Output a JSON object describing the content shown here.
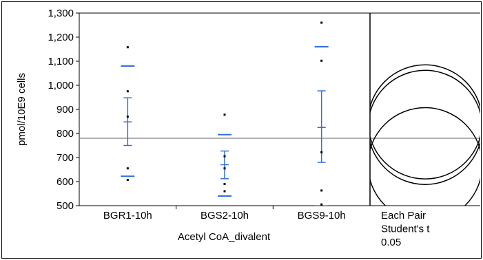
{
  "chart_data": {
    "type": "scatter",
    "title": "",
    "xlabel": "Acetyl CoA_divalent",
    "ylabel": "pmol/10E9 cells",
    "ylim": [
      500,
      1300
    ],
    "yticks": [
      500,
      600,
      700,
      800,
      900,
      1000,
      1100,
      1200,
      1300
    ],
    "ytick_labels": [
      "500",
      "600",
      "700",
      "800",
      "900",
      "1,000",
      "1,100",
      "1,200",
      "1,300"
    ],
    "categories": [
      "BGR1-10h",
      "BGS2-10h",
      "BGS9-10h"
    ],
    "grand_mean": 780,
    "points": [
      [
        1158,
        975,
        870,
        655,
        607
      ],
      [
        878,
        705,
        655,
        590,
        560
      ],
      [
        1260,
        1102,
        722,
        563,
        505
      ]
    ],
    "quantile_marks": [
      [
        1080,
        622
      ],
      [
        795,
        540
      ],
      [
        1160,
        498
      ]
    ],
    "means": [
      848,
      670,
      825
    ],
    "ci": [
      [
        750,
        948
      ],
      [
        612,
        727
      ],
      [
        680,
        977
      ]
    ],
    "comparison": {
      "lines": [
        "Each Pair",
        "Student's t",
        "0.05"
      ],
      "circles": [
        {
          "center": 848,
          "radius": 237
        },
        {
          "center": 825,
          "radius": 237
        },
        {
          "center": 670,
          "radius": 237
        }
      ]
    },
    "colors": {
      "points": "#000000",
      "marks": "#3070d8",
      "mean_line": "#808080",
      "axis": "#000000"
    },
    "grid": false
  }
}
